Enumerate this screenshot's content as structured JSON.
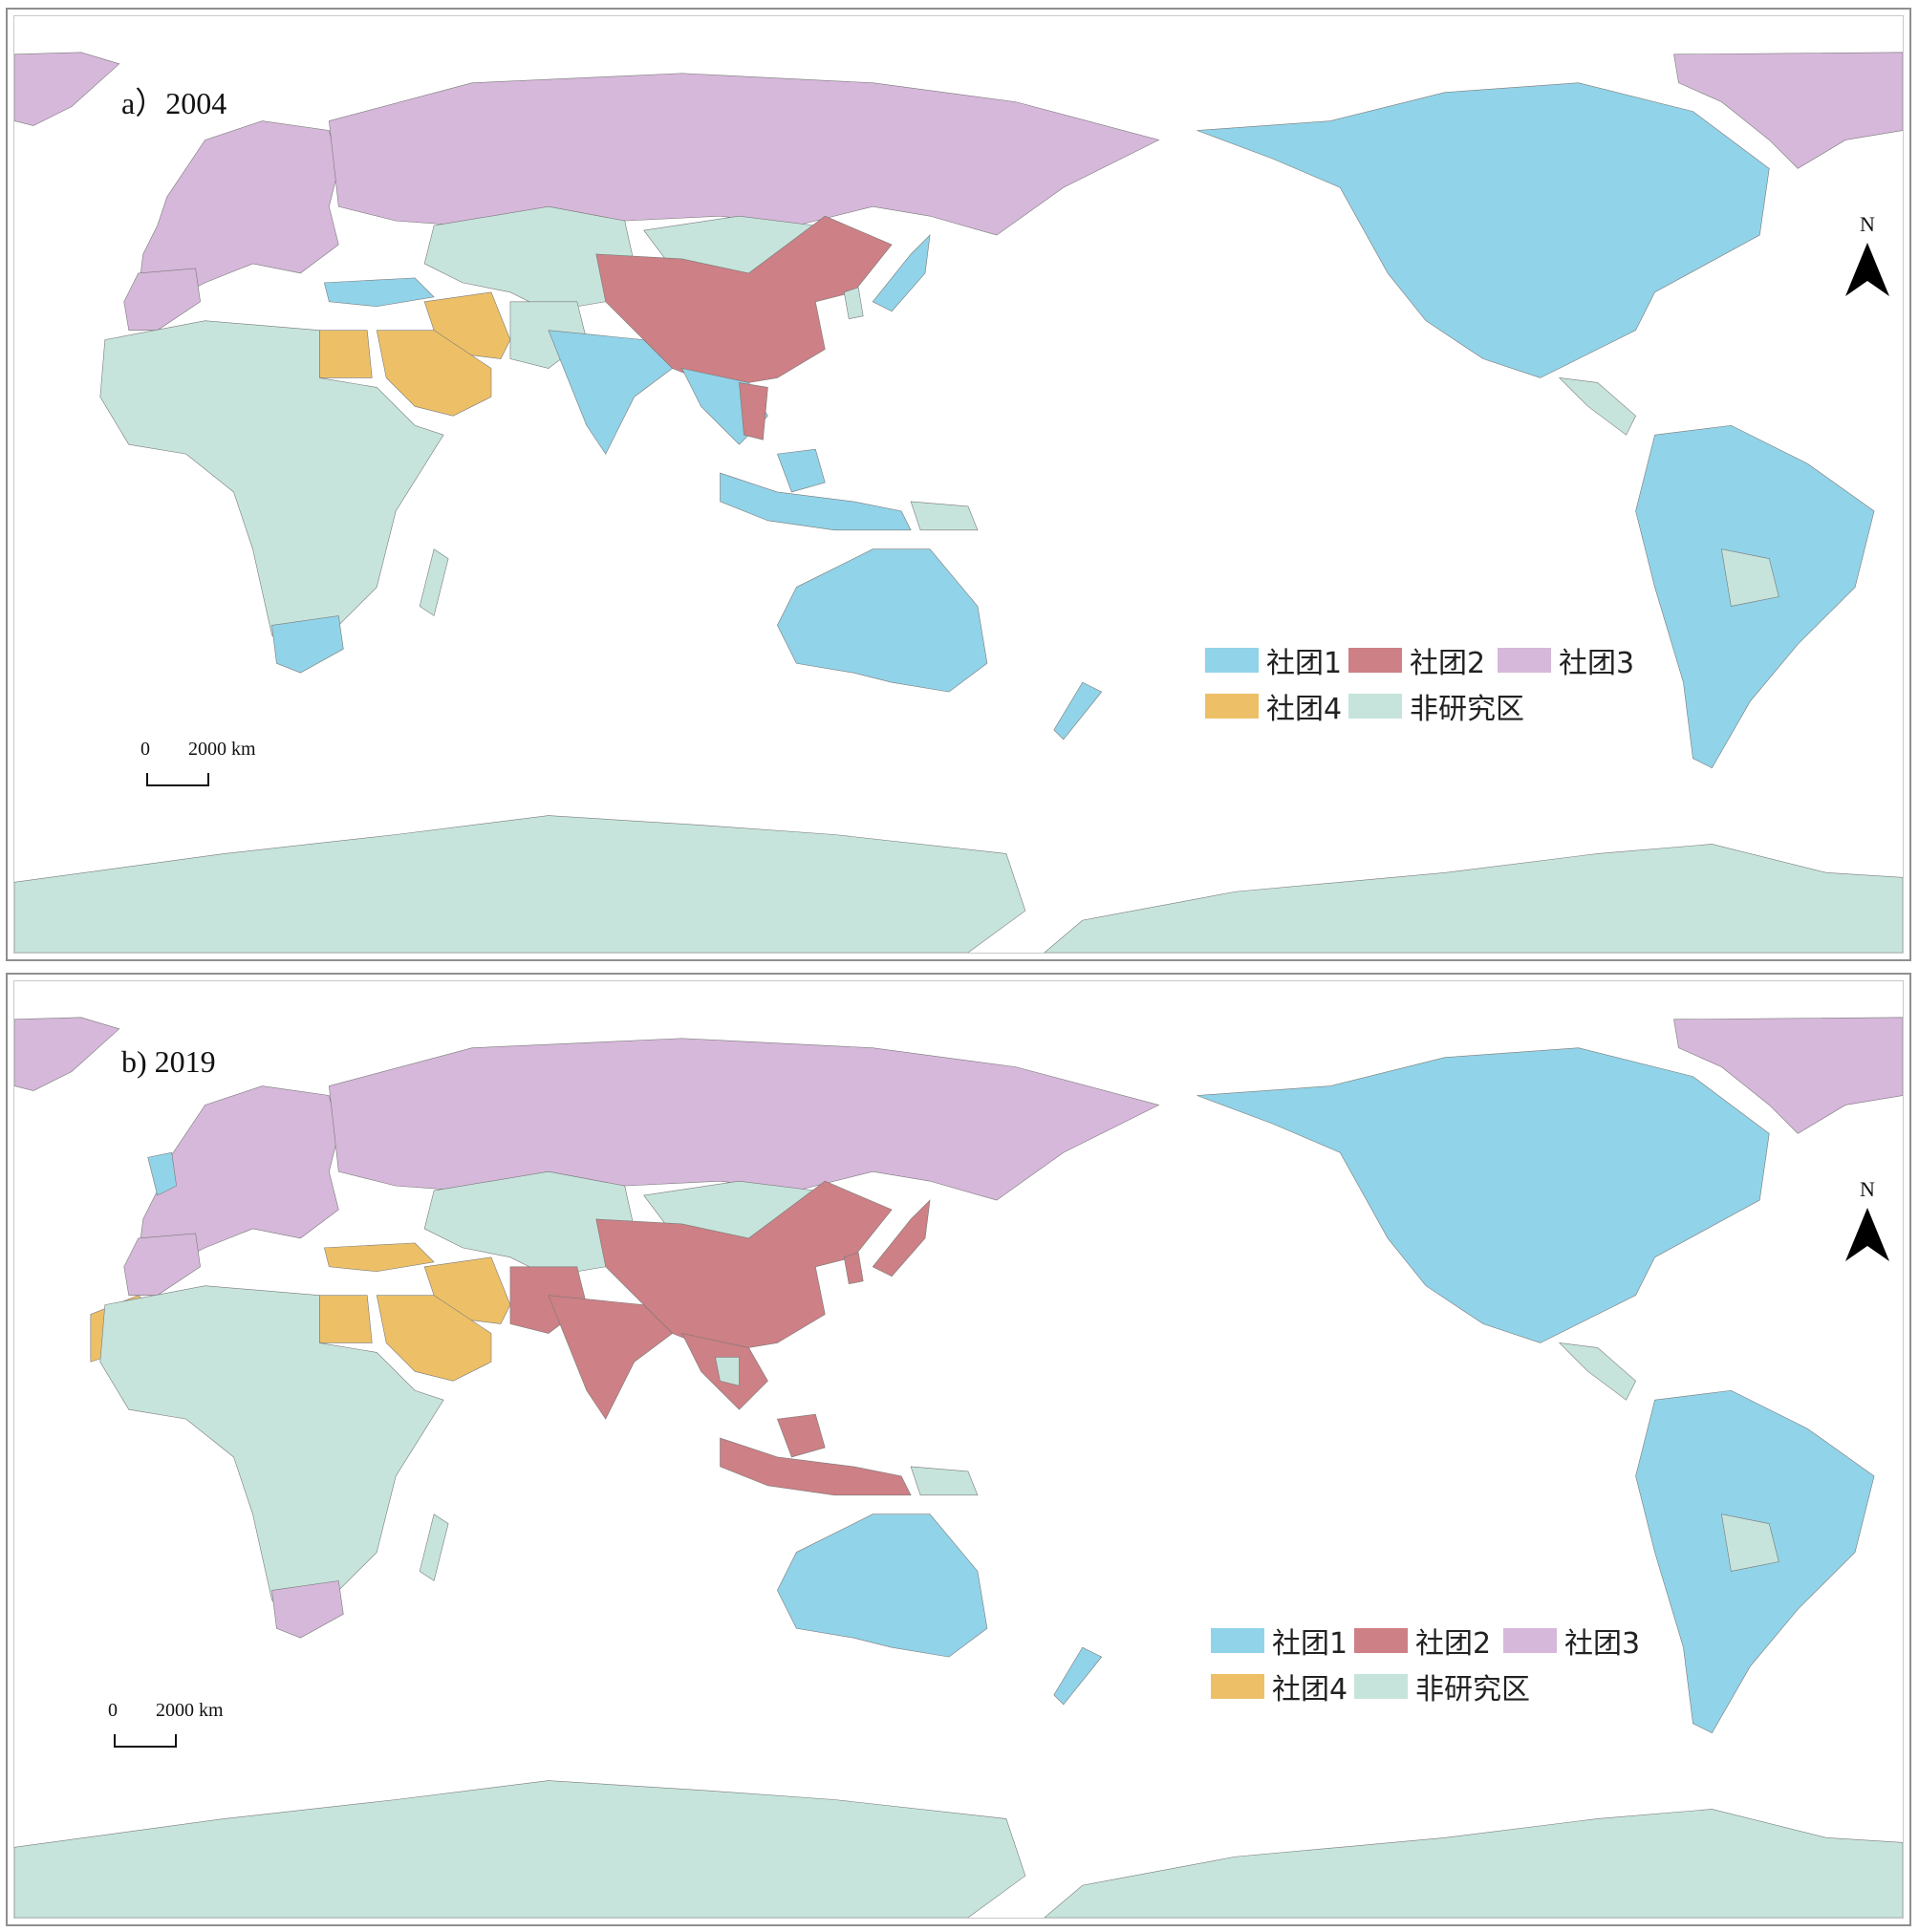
{
  "colors": {
    "community1": "#91d3e8",
    "community2": "#cd8085",
    "community3": "#d6b8da",
    "community4": "#edc067",
    "non_study": "#c6e4dc",
    "ocean": "#ffffff",
    "border": "#7a7a7a"
  },
  "panels": [
    {
      "title": "a）2004",
      "north_label": "N",
      "scale": {
        "zero": "0",
        "distance": "2000 km"
      },
      "legend": [
        "社团1",
        "社团2",
        "社团3",
        "社团4",
        "非研究区"
      ]
    },
    {
      "title": "b) 2019",
      "north_label": "N",
      "scale": {
        "zero": "0",
        "distance": "2000 km"
      },
      "legend": [
        "社团1",
        "社团2",
        "社团3",
        "社团4",
        "非研究区"
      ]
    }
  ]
}
